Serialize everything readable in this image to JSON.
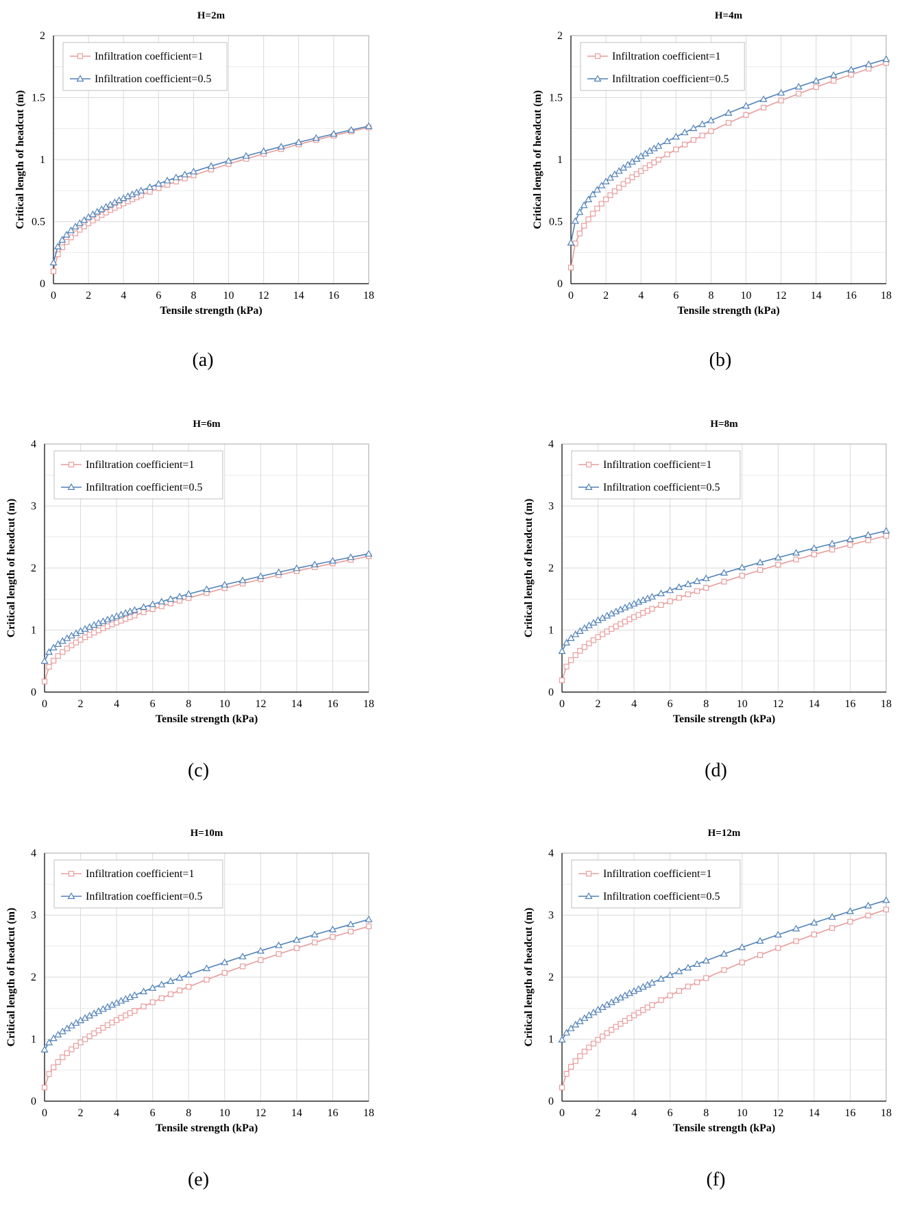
{
  "colors": {
    "series_1": "#e89b9b",
    "series_2": "#4f81b8",
    "grid": "#d9d9d9",
    "axis": "#000000",
    "text": "#000000"
  },
  "chart_data": [
    {
      "type": "line",
      "title": "H=2m",
      "caption": "(a)",
      "xlabel": "Tensile strength (kPa)",
      "ylabel": "Critical length of headcut (m)",
      "xlim": [
        0,
        18
      ],
      "ylim": [
        0,
        2
      ],
      "xticks": [
        "0",
        "2",
        "4",
        "6",
        "8",
        "10",
        "12",
        "14",
        "16",
        "18"
      ],
      "yticks": [
        "0",
        "0.5",
        "1",
        "1.5",
        "2"
      ],
      "grid": true,
      "legend_position": "top-left",
      "series": [
        {
          "name": "Infiltration coefficient=1",
          "marker": "square",
          "color_key": "series_1",
          "y0": 0.1,
          "y18": 1.26,
          "exponent": 0.5
        },
        {
          "name": "Infiltration coefficient=0.5",
          "marker": "triangle",
          "color_key": "series_2",
          "y0": 0.17,
          "y18": 1.27,
          "exponent": 0.5
        }
      ]
    },
    {
      "type": "line",
      "title": "H=4m",
      "caption": "(b)",
      "xlabel": "Tensile strength (kPa)",
      "ylabel": "Critical length of headcut (m)",
      "xlim": [
        0,
        18
      ],
      "ylim": [
        0,
        2
      ],
      "xticks": [
        "0",
        "2",
        "4",
        "6",
        "8",
        "10",
        "12",
        "14",
        "16",
        "18"
      ],
      "yticks": [
        "0",
        "0.5",
        "1",
        "1.5",
        "2"
      ],
      "grid": true,
      "legend_position": "top-left",
      "series": [
        {
          "name": "Infiltration coefficient=1",
          "marker": "square",
          "color_key": "series_1",
          "y0": 0.13,
          "y18": 1.78,
          "exponent": 0.5
        },
        {
          "name": "Infiltration coefficient=0.5",
          "marker": "triangle",
          "color_key": "series_2",
          "y0": 0.33,
          "y18": 1.81,
          "exponent": 0.5
        }
      ]
    },
    {
      "type": "line",
      "title": "H=6m",
      "caption": "(c)",
      "xlabel": "Tensile strength (kPa)",
      "ylabel": "Critical length of headcut (m)",
      "xlim": [
        0,
        18
      ],
      "ylim": [
        0,
        4
      ],
      "xticks": [
        "0",
        "2",
        "4",
        "6",
        "8",
        "10",
        "12",
        "14",
        "16",
        "18"
      ],
      "yticks": [
        "0",
        "1",
        "2",
        "3",
        "4"
      ],
      "grid": true,
      "legend_position": "top-left",
      "series": [
        {
          "name": "Infiltration coefficient=1",
          "marker": "square",
          "color_key": "series_1",
          "y0": 0.17,
          "y18": 2.19,
          "exponent": 0.5
        },
        {
          "name": "Infiltration coefficient=0.5",
          "marker": "triangle",
          "color_key": "series_2",
          "y0": 0.5,
          "y18": 2.23,
          "exponent": 0.58
        }
      ]
    },
    {
      "type": "line",
      "title": "H=8m",
      "caption": "(d)",
      "xlabel": "Tensile strength (kPa)",
      "ylabel": "Critical length of headcut (m)",
      "xlim": [
        0,
        18
      ],
      "ylim": [
        0,
        4
      ],
      "xticks": [
        "0",
        "2",
        "4",
        "6",
        "8",
        "10",
        "12",
        "14",
        "16",
        "18"
      ],
      "yticks": [
        "0",
        "1",
        "2",
        "3",
        "4"
      ],
      "grid": true,
      "legend_position": "top-left",
      "series": [
        {
          "name": "Infiltration coefficient=1",
          "marker": "square",
          "color_key": "series_1",
          "y0": 0.19,
          "y18": 2.52,
          "exponent": 0.55
        },
        {
          "name": "Infiltration coefficient=0.5",
          "marker": "triangle",
          "color_key": "series_2",
          "y0": 0.66,
          "y18": 2.6,
          "exponent": 0.62
        }
      ]
    },
    {
      "type": "line",
      "title": "H=10m",
      "caption": "(e)",
      "xlabel": "Tensile strength (kPa)",
      "ylabel": "Critical length of headcut (m)",
      "xlim": [
        0,
        18
      ],
      "ylim": [
        0,
        4
      ],
      "xticks": [
        "0",
        "2",
        "4",
        "6",
        "8",
        "10",
        "12",
        "14",
        "16",
        "18"
      ],
      "yticks": [
        "0",
        "1",
        "2",
        "3",
        "4"
      ],
      "grid": true,
      "legend_position": "top-left",
      "series": [
        {
          "name": "Infiltration coefficient=1",
          "marker": "square",
          "color_key": "series_1",
          "y0": 0.22,
          "y18": 2.82,
          "exponent": 0.58
        },
        {
          "name": "Infiltration coefficient=0.5",
          "marker": "triangle",
          "color_key": "series_2",
          "y0": 0.83,
          "y18": 2.93,
          "exponent": 0.68
        }
      ]
    },
    {
      "type": "line",
      "title": "H=12m",
      "caption": "(f)",
      "xlabel": "Tensile strength (kPa)",
      "ylabel": "Critical length of headcut (m)",
      "xlim": [
        0,
        18
      ],
      "ylim": [
        0,
        4
      ],
      "xticks": [
        "0",
        "2",
        "4",
        "6",
        "8",
        "10",
        "12",
        "14",
        "16",
        "18"
      ],
      "yticks": [
        "0",
        "1",
        "2",
        "3",
        "4"
      ],
      "grid": true,
      "legend_position": "top-left",
      "series": [
        {
          "name": "Infiltration coefficient=1",
          "marker": "square",
          "color_key": "series_1",
          "y0": 0.22,
          "y18": 3.09,
          "exponent": 0.6
        },
        {
          "name": "Infiltration coefficient=0.5",
          "marker": "triangle",
          "color_key": "series_2",
          "y0": 0.99,
          "y18": 3.24,
          "exponent": 0.7
        }
      ]
    }
  ]
}
